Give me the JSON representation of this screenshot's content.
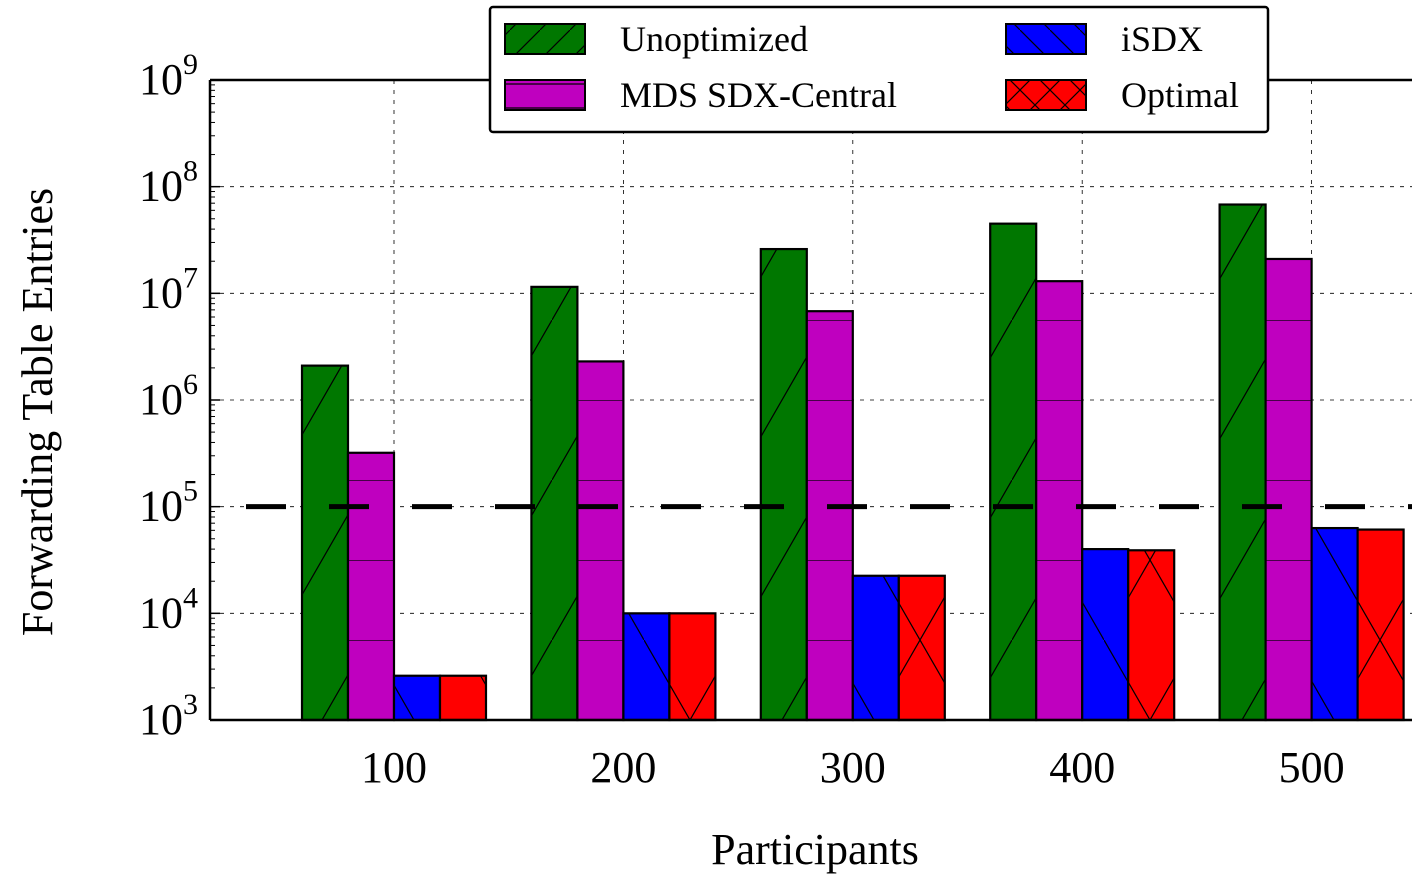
{
  "chart_data": {
    "type": "bar",
    "title": "",
    "xlabel": "Participants",
    "ylabel": "Forwarding Table Entries",
    "yscale": "log",
    "ylim": [
      1000,
      1000000000
    ],
    "ytick_exponents": [
      "3",
      "4",
      "5",
      "6",
      "7",
      "8",
      "9"
    ],
    "ytick_base": "10",
    "categories": [
      "100",
      "200",
      "300",
      "400",
      "500"
    ],
    "grid": true,
    "legend_position": "top-center",
    "threshold_line": 100000,
    "series": [
      {
        "name": "Unoptimized",
        "color": "#007700",
        "hatch": "forward-diagonal",
        "values": [
          2100000,
          11500000,
          26000000,
          45000000,
          68000000
        ]
      },
      {
        "name": "MDS SDX-Central",
        "color": "#bf00bf",
        "hatch": "horizontal",
        "values": [
          320000,
          2300000,
          6800000,
          13000000,
          21000000
        ]
      },
      {
        "name": "iSDX",
        "color": "#0000ff",
        "hatch": "back-diagonal",
        "values": [
          2600,
          10000,
          22500,
          40000,
          63000
        ]
      },
      {
        "name": "Optimal",
        "color": "#ff0000",
        "hatch": "cross",
        "values": [
          2600,
          10000,
          22500,
          39000,
          61000
        ]
      }
    ]
  }
}
